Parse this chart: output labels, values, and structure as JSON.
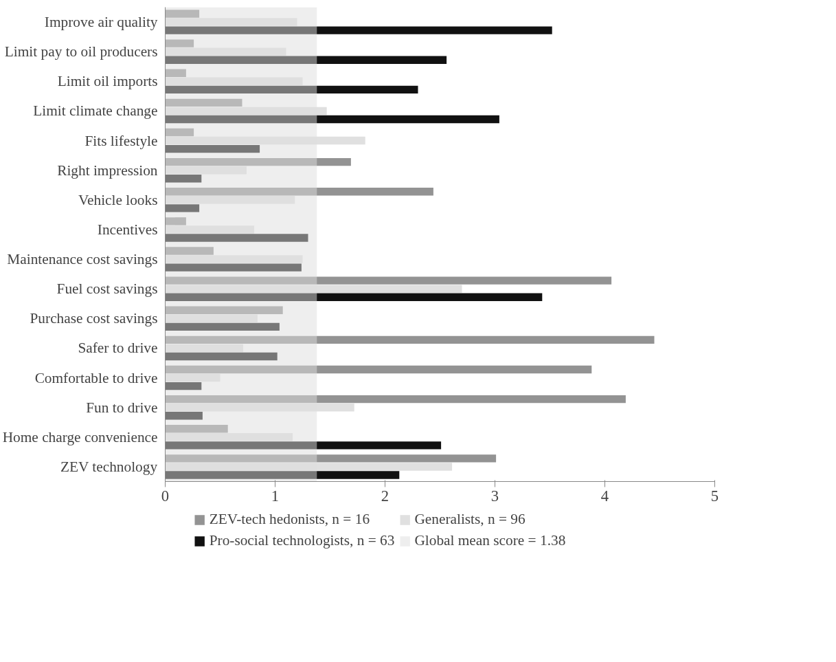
{
  "chart_data": {
    "type": "bar",
    "orientation": "horizontal",
    "categories": [
      "Improve air quality",
      "Limit pay to oil producers",
      "Limit oil imports",
      "Limit climate change",
      "Fits lifestyle",
      "Right impression",
      "Vehicle looks",
      "Incentives",
      "Maintenance cost savings",
      "Fuel cost savings",
      "Purchase cost savings",
      "Safer to drive",
      "Comfortable to drive",
      "Fun to drive",
      "Home charge convenience",
      "ZEV technology"
    ],
    "series": [
      {
        "name": "ZEV-tech hedonists, n = 16",
        "color": "#939393",
        "values": [
          0.31,
          0.26,
          0.19,
          0.7,
          0.26,
          1.69,
          2.44,
          0.19,
          0.44,
          4.06,
          1.07,
          4.45,
          3.88,
          4.19,
          0.57,
          3.01
        ]
      },
      {
        "name": "Generalists, n = 96",
        "color": "#e0e0e0",
        "values": [
          1.2,
          1.1,
          1.25,
          1.47,
          1.82,
          0.74,
          1.18,
          0.81,
          1.25,
          2.7,
          0.84,
          0.71,
          0.5,
          1.72,
          1.16,
          2.61
        ]
      },
      {
        "name": "Pro-social technologists, n = 63",
        "color": "#111111",
        "values": [
          3.52,
          2.56,
          2.3,
          3.04,
          0.86,
          0.33,
          0.31,
          1.3,
          1.24,
          3.43,
          1.04,
          1.02,
          0.33,
          0.34,
          2.51,
          2.13
        ]
      }
    ],
    "bands": [
      {
        "axis": "x",
        "from": 0,
        "to": 1.38,
        "label": "Global mean score = 1.38",
        "color": "#dddddd"
      }
    ],
    "xlim": [
      0,
      5
    ],
    "xticks": [
      0,
      1,
      2,
      3,
      4,
      5
    ],
    "grid": false,
    "legend": "bottom"
  }
}
